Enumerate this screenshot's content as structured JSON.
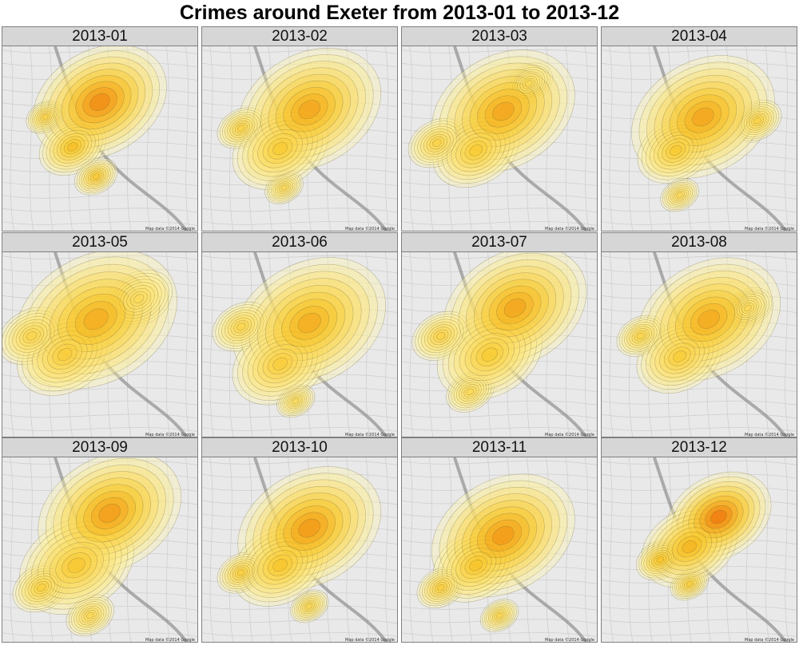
{
  "chart_data": {
    "type": "heatmap",
    "title": "Crimes around Exeter from 2013-01 to 2013-12",
    "subtype": "2D kernel density of crime locations, faceted by month, over street-map tiles",
    "facet_layout": {
      "rows": 3,
      "cols": 4
    },
    "colors": {
      "density_low": "#fff5a8",
      "density_mid": "#f6c21a",
      "density_high": "#ee5a00",
      "contour": "#6b5a2a",
      "map_bg": "#e9e9e9",
      "river": "#8f8f8f",
      "strip_bg": "#d6d6d6"
    },
    "map_credit": "Map data ©2014 Google",
    "panels": [
      {
        "label": "2013-01",
        "peak_intensity": 0.9,
        "hotspots": [
          [
            0.5,
            0.3,
            0.28
          ],
          [
            0.36,
            0.54,
            0.14
          ],
          [
            0.48,
            0.7,
            0.09
          ],
          [
            0.22,
            0.38,
            0.08
          ]
        ]
      },
      {
        "label": "2013-02",
        "peak_intensity": 0.75,
        "hotspots": [
          [
            0.55,
            0.34,
            0.3
          ],
          [
            0.4,
            0.55,
            0.2
          ],
          [
            0.2,
            0.44,
            0.1
          ],
          [
            0.42,
            0.76,
            0.08
          ]
        ]
      },
      {
        "label": "2013-03",
        "peak_intensity": 0.75,
        "hotspots": [
          [
            0.52,
            0.35,
            0.3
          ],
          [
            0.38,
            0.56,
            0.18
          ],
          [
            0.18,
            0.52,
            0.12
          ],
          [
            0.65,
            0.2,
            0.1
          ]
        ]
      },
      {
        "label": "2013-04",
        "peak_intensity": 0.75,
        "hotspots": [
          [
            0.52,
            0.38,
            0.3
          ],
          [
            0.38,
            0.56,
            0.16
          ],
          [
            0.8,
            0.4,
            0.1
          ],
          [
            0.4,
            0.8,
            0.08
          ]
        ]
      },
      {
        "label": "2013-05",
        "peak_intensity": 0.7,
        "hotspots": [
          [
            0.48,
            0.36,
            0.34
          ],
          [
            0.32,
            0.55,
            0.2
          ],
          [
            0.15,
            0.45,
            0.14
          ],
          [
            0.7,
            0.25,
            0.14
          ]
        ]
      },
      {
        "label": "2013-06",
        "peak_intensity": 0.7,
        "hotspots": [
          [
            0.55,
            0.38,
            0.32
          ],
          [
            0.4,
            0.6,
            0.2
          ],
          [
            0.2,
            0.4,
            0.12
          ],
          [
            0.48,
            0.8,
            0.08
          ]
        ]
      },
      {
        "label": "2013-07",
        "peak_intensity": 0.75,
        "hotspots": [
          [
            0.58,
            0.3,
            0.3
          ],
          [
            0.45,
            0.55,
            0.22
          ],
          [
            0.2,
            0.45,
            0.12
          ],
          [
            0.35,
            0.75,
            0.1
          ]
        ]
      },
      {
        "label": "2013-08",
        "peak_intensity": 0.72,
        "hotspots": [
          [
            0.55,
            0.36,
            0.3
          ],
          [
            0.4,
            0.56,
            0.18
          ],
          [
            0.2,
            0.45,
            0.1
          ],
          [
            0.75,
            0.3,
            0.1
          ]
        ]
      },
      {
        "label": "2013-09",
        "peak_intensity": 0.8,
        "hotspots": [
          [
            0.55,
            0.3,
            0.3
          ],
          [
            0.38,
            0.58,
            0.24
          ],
          [
            0.2,
            0.7,
            0.12
          ],
          [
            0.45,
            0.85,
            0.1
          ]
        ]
      },
      {
        "label": "2013-10",
        "peak_intensity": 0.82,
        "hotspots": [
          [
            0.55,
            0.38,
            0.3
          ],
          [
            0.4,
            0.58,
            0.2
          ],
          [
            0.2,
            0.62,
            0.1
          ],
          [
            0.55,
            0.8,
            0.08
          ]
        ]
      },
      {
        "label": "2013-11",
        "peak_intensity": 0.82,
        "hotspots": [
          [
            0.52,
            0.42,
            0.3
          ],
          [
            0.38,
            0.58,
            0.18
          ],
          [
            0.2,
            0.7,
            0.1
          ],
          [
            0.5,
            0.85,
            0.08
          ]
        ]
      },
      {
        "label": "2013-12",
        "peak_intensity": 1.0,
        "hotspots": [
          [
            0.6,
            0.32,
            0.22
          ],
          [
            0.45,
            0.48,
            0.2
          ],
          [
            0.3,
            0.55,
            0.1
          ],
          [
            0.45,
            0.68,
            0.08
          ]
        ]
      }
    ]
  }
}
